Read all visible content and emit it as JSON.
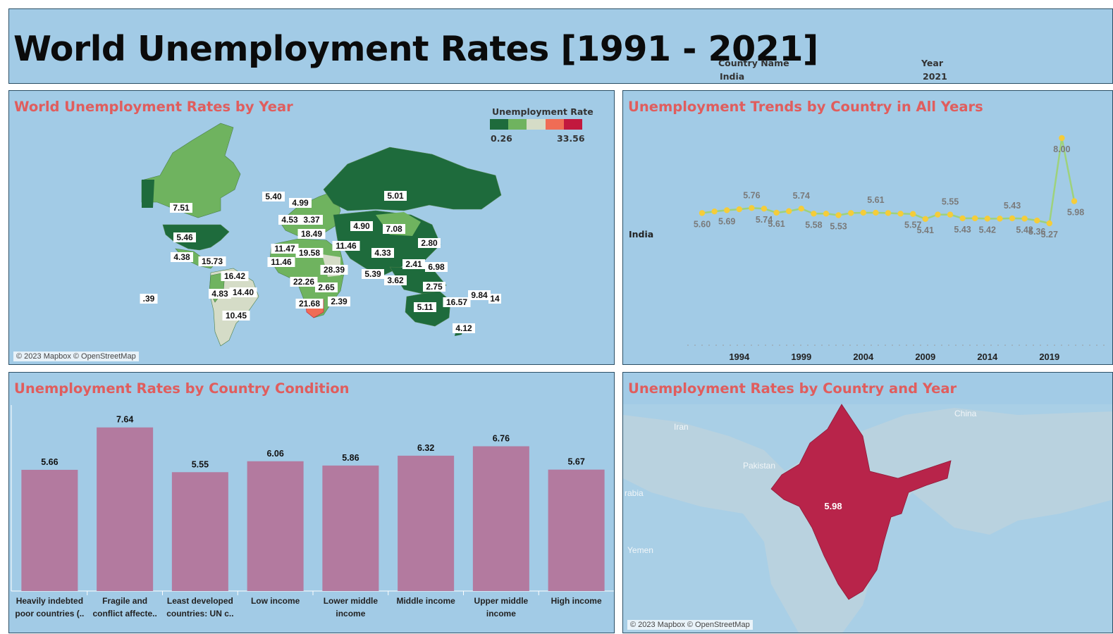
{
  "header": {
    "title": "World Unemployment Rates [1991 - 2021]",
    "country_filter_label": "Country Name",
    "country_filter_value": "India",
    "year_filter_label": "Year",
    "year_filter_value": "2021"
  },
  "world_map": {
    "title": "World Unemployment Rates by Year",
    "legend_title": "Unemployment Rate",
    "legend_min": "0.26",
    "legend_max": "33.56",
    "legend_colors": [
      "#1e6b3c",
      "#6fb35f",
      "#d5dcc7",
      "#f06c55",
      "#c2183e"
    ],
    "credit": "© 2023 Mapbox © OpenStreetMap",
    "labels": [
      "7.51",
      "5.46",
      "4.38",
      "15.73",
      "16.42",
      "14.40",
      "4.83",
      "10.45",
      ".39",
      "5.40",
      "4.99",
      "4.53",
      "3.37",
      "18.49",
      "11.47",
      "19.58",
      "11.46",
      "28.39",
      "22.26",
      "2.65",
      "21.68",
      "2.39",
      "5.01",
      "4.90",
      "7.08",
      "11.46",
      "4.33",
      "2.80",
      "5.39",
      "2.41",
      "6.98",
      "3.62",
      "2.75",
      "5.11",
      "16.57",
      "9.84",
      "14",
      "4.12"
    ]
  },
  "trend": {
    "title": "Unemployment Trends by Country in All Years",
    "country": "India",
    "point_labels": [
      {
        "year": "1991",
        "text": "5.60"
      },
      {
        "year": "1993",
        "text": "5.69"
      },
      {
        "year": "1995",
        "text": "5.76"
      },
      {
        "year": "1996",
        "text": "5.74"
      },
      {
        "year": "1997",
        "text": "5.61"
      },
      {
        "year": "1999",
        "text": "5.74"
      },
      {
        "year": "2000",
        "text": "5.58"
      },
      {
        "year": "2002",
        "text": "5.53"
      },
      {
        "year": "2005",
        "text": "5.61"
      },
      {
        "year": "2008",
        "text": "5.57"
      },
      {
        "year": "2009",
        "text": "5.41"
      },
      {
        "year": "2011",
        "text": "5.55"
      },
      {
        "year": "2012",
        "text": "5.43"
      },
      {
        "year": "2014",
        "text": "5.42"
      },
      {
        "year": "2016",
        "text": "5.43"
      },
      {
        "year": "2017",
        "text": "5.42"
      },
      {
        "year": "2018",
        "text": "5.36"
      },
      {
        "year": "2019",
        "text": "5.27"
      },
      {
        "year": "2020",
        "text": "8.00"
      },
      {
        "year": "2021",
        "text": "5.98"
      }
    ],
    "x_ticks": [
      "1994",
      "1999",
      "2004",
      "2009",
      "2014",
      "2019"
    ]
  },
  "chart_data": [
    {
      "type": "line",
      "title": "Unemployment Trends by Country in All Years",
      "series": [
        {
          "name": "India",
          "x": [
            1991,
            1992,
            1993,
            1994,
            1995,
            1996,
            1997,
            1998,
            1999,
            2000,
            2001,
            2002,
            2003,
            2004,
            2005,
            2006,
            2007,
            2008,
            2009,
            2010,
            2011,
            2012,
            2013,
            2014,
            2015,
            2016,
            2017,
            2018,
            2019,
            2020,
            2021
          ],
          "values": [
            5.6,
            5.65,
            5.69,
            5.72,
            5.76,
            5.74,
            5.61,
            5.66,
            5.74,
            5.58,
            5.58,
            5.53,
            5.6,
            5.61,
            5.61,
            5.6,
            5.58,
            5.57,
            5.41,
            5.55,
            5.55,
            5.43,
            5.43,
            5.42,
            5.42,
            5.43,
            5.42,
            5.36,
            5.27,
            8.0,
            5.98
          ]
        }
      ],
      "ylim": [
        0,
        9
      ]
    },
    {
      "type": "bar",
      "title": "Unemployment Rates by Country Condition",
      "categories": [
        [
          "Heavily indebted",
          "poor countries (.."
        ],
        [
          "Fragile and",
          "conflict affecte.."
        ],
        [
          "Least developed",
          "countries: UN c.."
        ],
        [
          "Low income"
        ],
        [
          "Lower middle",
          "income"
        ],
        [
          "Middle income"
        ],
        [
          "Upper middle",
          "income"
        ],
        [
          "High income"
        ]
      ],
      "values": [
        5.66,
        7.64,
        5.55,
        6.06,
        5.86,
        6.32,
        6.76,
        5.67
      ],
      "value_labels": [
        "5.66",
        "7.64",
        "5.55",
        "6.06",
        "5.86",
        "6.32",
        "6.76",
        "5.67"
      ],
      "color": "#b37a9f"
    }
  ],
  "country_map": {
    "title": "Unemployment Rates by Country and Year",
    "value": "5.98",
    "fill_color": "#b8244a",
    "places": [
      "China",
      "Iran",
      "Pakistan",
      "rabia",
      "Yemen"
    ],
    "credit": "© 2023 Mapbox © OpenStreetMap"
  }
}
